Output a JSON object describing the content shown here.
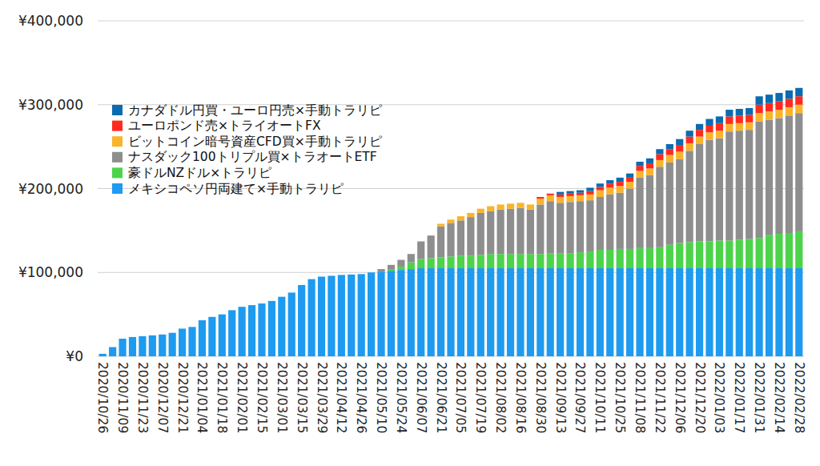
{
  "chart_data": {
    "type": "bar",
    "stacked": true,
    "grid": true,
    "legend": "top-left",
    "categories": [
      "2020/10/26",
      null,
      "2020/11/09",
      null,
      "2020/11/23",
      null,
      "2020/12/07",
      null,
      "2020/12/21",
      null,
      "2021/01/04",
      null,
      "2021/01/18",
      null,
      "2021/02/01",
      null,
      "2021/02/15",
      null,
      "2021/03/01",
      null,
      "2021/03/15",
      null,
      "2021/03/29",
      null,
      "2021/04/12",
      null,
      "2021/04/26",
      null,
      "2021/05/10",
      null,
      "2021/05/24",
      null,
      "2021/06/07",
      null,
      "2021/06/21",
      null,
      "2021/07/05",
      null,
      "2021/07/19",
      null,
      "2021/08/02",
      null,
      "2021/08/16",
      null,
      "2021/08/30",
      null,
      "2021/09/13",
      null,
      "2021/09/27",
      null,
      "2021/10/11",
      null,
      "2021/10/25",
      null,
      "2021/11/08",
      null,
      "2021/11/22",
      null,
      "2021/12/06",
      null,
      "2021/12/20",
      null,
      "2022/01/03",
      null,
      "2022/01/17",
      null,
      "2022/01/31",
      null,
      "2022/02/14",
      null,
      "2022/02/28"
    ],
    "ylim": [
      0,
      400000
    ],
    "yticks": [
      {
        "value": 0,
        "label": "¥0"
      },
      {
        "value": 100000,
        "label": "¥100,000"
      },
      {
        "value": 200000,
        "label": "¥200,000"
      },
      {
        "value": 300000,
        "label": "¥300,000"
      },
      {
        "value": 400000,
        "label": "¥400,000"
      }
    ],
    "series": [
      {
        "name": "メキシコペソ円両建て×手動トラリピ",
        "color": "#1e9bf0",
        "values": [
          3000,
          11000,
          21000,
          23000,
          24000,
          25000,
          26000,
          28000,
          33000,
          35000,
          43000,
          47000,
          50000,
          55000,
          59000,
          61000,
          63000,
          66000,
          71000,
          76000,
          85000,
          92000,
          95000,
          96000,
          97000,
          97500,
          98000,
          100000,
          101000,
          102000,
          103000,
          104000,
          105000,
          105000,
          105000,
          105000,
          105000,
          105000,
          105000,
          105000,
          105000,
          105000,
          105000,
          105000,
          105000,
          105000,
          105000,
          105000,
          105000,
          105000,
          105000,
          105000,
          105000,
          105000,
          105000,
          105000,
          105000,
          105000,
          105000,
          105000,
          105000,
          105000,
          105000,
          105000,
          105000,
          105000,
          105000,
          105000,
          105000,
          105000,
          105000
        ]
      },
      {
        "name": "豪ドルNZドル×トラリピ",
        "color": "#4cd34a",
        "values": [
          0,
          0,
          0,
          0,
          0,
          0,
          0,
          0,
          0,
          0,
          0,
          0,
          0,
          0,
          0,
          0,
          0,
          0,
          0,
          0,
          0,
          0,
          0,
          0,
          0,
          0,
          0,
          0,
          0,
          2000,
          4000,
          8000,
          11000,
          12000,
          13000,
          14000,
          15000,
          15000,
          16000,
          17000,
          17000,
          17000,
          17000,
          17000,
          17000,
          18000,
          18000,
          18000,
          19000,
          20000,
          22000,
          22000,
          23000,
          23000,
          24000,
          24000,
          25000,
          28000,
          30000,
          31000,
          32000,
          32000,
          33000,
          33000,
          34000,
          35000,
          36000,
          40000,
          41000,
          42000,
          44000
        ]
      },
      {
        "name": "ナスダック100トリプル買×トラオートETF",
        "color": "#8e8e8e",
        "values": [
          0,
          0,
          0,
          0,
          0,
          0,
          0,
          0,
          0,
          0,
          0,
          0,
          0,
          0,
          0,
          0,
          0,
          0,
          0,
          0,
          0,
          0,
          0,
          0,
          0,
          0,
          0,
          0,
          3000,
          5000,
          8000,
          10000,
          21000,
          27000,
          37000,
          40000,
          42000,
          46000,
          50000,
          51000,
          53000,
          54000,
          55000,
          53000,
          59000,
          62000,
          60000,
          61000,
          61000,
          61000,
          63000,
          66000,
          67000,
          72000,
          84000,
          87000,
          96000,
          98000,
          100000,
          109000,
          116000,
          121000,
          122000,
          130000,
          130000,
          130000,
          139000,
          137000,
          138000,
          140000,
          141000
        ]
      },
      {
        "name": "ビットコイン暗号資産CFD買×手動トラリピ",
        "color": "#f9b42c",
        "values": [
          0,
          0,
          0,
          0,
          0,
          0,
          0,
          0,
          0,
          0,
          0,
          0,
          0,
          0,
          0,
          0,
          0,
          0,
          0,
          0,
          0,
          0,
          0,
          0,
          0,
          0,
          0,
          0,
          0,
          0,
          0,
          0,
          0,
          0,
          3000,
          4000,
          5000,
          5000,
          5000,
          6000,
          6000,
          6000,
          6000,
          6000,
          7000,
          7000,
          7000,
          7000,
          7000,
          7000,
          8000,
          8000,
          8000,
          8000,
          8000,
          8000,
          8000,
          9000,
          9000,
          9000,
          9000,
          9000,
          9000,
          9000,
          9000,
          9000,
          10000,
          10000,
          10000,
          10000,
          10000
        ]
      },
      {
        "name": "ユーロポンド売×トライオートFX",
        "color": "#ff2a1f",
        "values": [
          0,
          0,
          0,
          0,
          0,
          0,
          0,
          0,
          0,
          0,
          0,
          0,
          0,
          0,
          0,
          0,
          0,
          0,
          0,
          0,
          0,
          0,
          0,
          0,
          0,
          0,
          0,
          0,
          0,
          0,
          0,
          0,
          0,
          0,
          0,
          0,
          0,
          0,
          0,
          0,
          0,
          0,
          0,
          0,
          2000,
          2000,
          3000,
          3000,
          3000,
          4000,
          4000,
          5000,
          5000,
          5000,
          6000,
          6000,
          7000,
          7000,
          8000,
          8000,
          8000,
          8000,
          9000,
          9000,
          9000,
          9000,
          10000,
          10000,
          10000,
          10000,
          10000
        ]
      },
      {
        "name": "カナダドル円買・ユーロ円売×手動トラリピ",
        "color": "#0b6bb0",
        "values": [
          0,
          0,
          0,
          0,
          0,
          0,
          0,
          0,
          0,
          0,
          0,
          0,
          0,
          0,
          0,
          0,
          0,
          0,
          0,
          0,
          0,
          0,
          0,
          0,
          0,
          0,
          0,
          0,
          0,
          0,
          0,
          0,
          0,
          0,
          0,
          0,
          0,
          0,
          0,
          0,
          0,
          0,
          0,
          0,
          0,
          0,
          3000,
          3000,
          3000,
          4000,
          4000,
          4000,
          5000,
          5000,
          5000,
          6000,
          6000,
          6000,
          7000,
          7000,
          7000,
          8000,
          8000,
          8000,
          8000,
          8000,
          10000,
          10000,
          10000,
          10000,
          10000
        ]
      }
    ]
  }
}
